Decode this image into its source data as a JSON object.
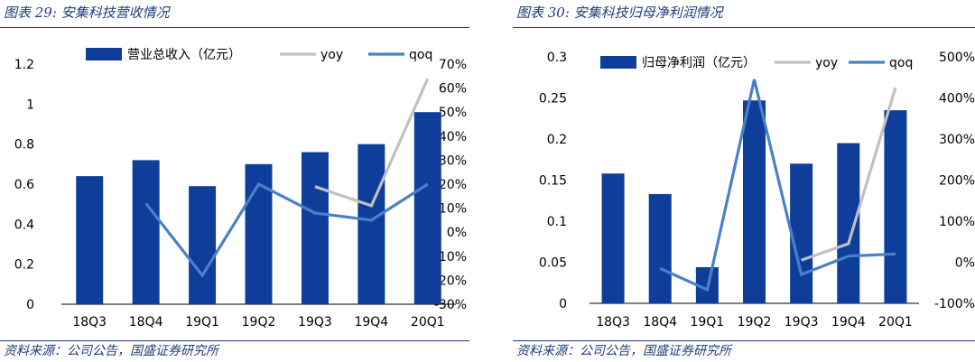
{
  "colors": {
    "bar": "#0e3e99",
    "yoy": "#c0c0c0",
    "qoq": "#4a80c8",
    "header": "#1f3d7a"
  },
  "panels": [
    {
      "title": "图表 29:  安集科技营收情况",
      "source": "资料来源：公司公告，国盛证券研究所"
    },
    {
      "title": "图表 30:  安集科技归母净利润情况",
      "source": "资料来源：公司公告，国盛证券研究所"
    }
  ],
  "chart_data": [
    {
      "type": "bar",
      "categories": [
        "18Q3",
        "18Q4",
        "19Q1",
        "19Q2",
        "19Q3",
        "19Q4",
        "20Q1"
      ],
      "series": [
        {
          "name": "营业总收入（亿元）",
          "type": "bar",
          "axis": "left",
          "values": [
            0.64,
            0.72,
            0.59,
            0.7,
            0.76,
            0.8,
            0.96
          ]
        },
        {
          "name": "yoy",
          "type": "line",
          "axis": "right",
          "values": [
            null,
            null,
            null,
            null,
            0.19,
            0.11,
            0.64
          ]
        },
        {
          "name": "qoq",
          "type": "line",
          "axis": "right",
          "values": [
            null,
            0.12,
            -0.18,
            0.2,
            0.08,
            0.05,
            0.2
          ]
        }
      ],
      "ylim_left": [
        0,
        1.2
      ],
      "yticks_left": [
        "0",
        "0.2",
        "0.4",
        "0.6",
        "0.8",
        "1",
        "1.2"
      ],
      "ylim_right": [
        -0.3,
        0.7
      ],
      "yticks_right": [
        "-30%",
        "-20%",
        "-10%",
        "0%",
        "10%",
        "20%",
        "30%",
        "40%",
        "50%",
        "60%",
        "70%"
      ],
      "legend": "top"
    },
    {
      "type": "bar",
      "categories": [
        "18Q3",
        "18Q4",
        "19Q1",
        "19Q2",
        "19Q3",
        "19Q4",
        "20Q1"
      ],
      "series": [
        {
          "name": "归母净利润（亿元）",
          "type": "bar",
          "axis": "left",
          "values": [
            0.158,
            0.133,
            0.044,
            0.247,
            0.17,
            0.195,
            0.235
          ]
        },
        {
          "name": "yoy",
          "type": "line",
          "axis": "right",
          "values": [
            null,
            null,
            null,
            null,
            0.05,
            0.45,
            4.25
          ]
        },
        {
          "name": "qoq",
          "type": "line",
          "axis": "right",
          "values": [
            null,
            -0.15,
            -0.67,
            4.45,
            -0.3,
            0.15,
            0.2
          ]
        }
      ],
      "ylim_left": [
        0,
        0.3
      ],
      "yticks_left": [
        "0",
        "0.05",
        "0.1",
        "0.15",
        "0.2",
        "0.25",
        "0.3"
      ],
      "ylim_right": [
        -1.0,
        5.0
      ],
      "yticks_right": [
        "-100%",
        "0%",
        "100%",
        "200%",
        "300%",
        "400%",
        "500%"
      ],
      "legend": "top"
    }
  ]
}
